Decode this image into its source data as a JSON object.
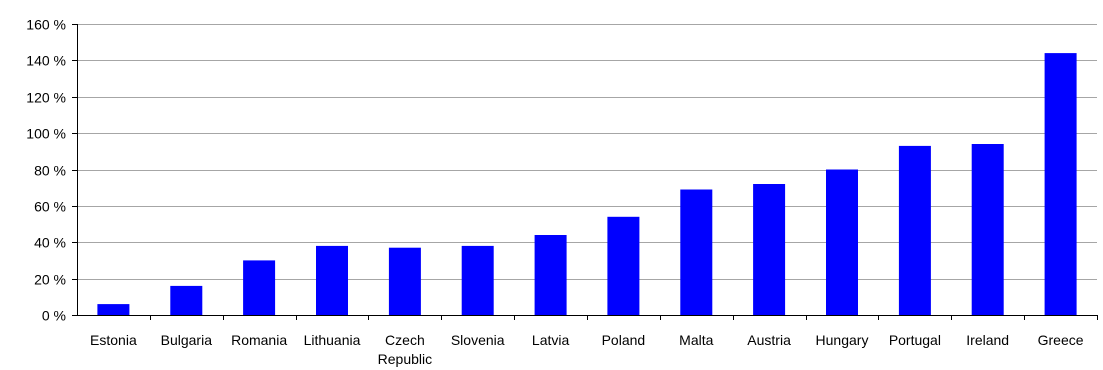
{
  "chart_data": {
    "type": "bar",
    "categories": [
      "Estonia",
      "Bulgaria",
      "Romania",
      "Lithuania",
      "Czech Republic",
      "Slovenia",
      "Latvia",
      "Poland",
      "Malta",
      "Austria",
      "Hungary",
      "Portugal",
      "Ireland",
      "Greece"
    ],
    "values": [
      6,
      16,
      30,
      38,
      37,
      38,
      44,
      54,
      69,
      72,
      80,
      93,
      94,
      144
    ],
    "ylim": [
      0,
      160
    ],
    "yticks": [
      0,
      20,
      40,
      60,
      80,
      100,
      120,
      140,
      160
    ],
    "tick_labels": [
      "0 %",
      "20 %",
      "40 %",
      "60 %",
      "80 %",
      "100 %",
      "120 %",
      "140 %",
      "160 %"
    ],
    "title": "",
    "xlabel": "",
    "ylabel": "",
    "grid": true,
    "legend": "none",
    "bar_color": "#0000ff"
  }
}
